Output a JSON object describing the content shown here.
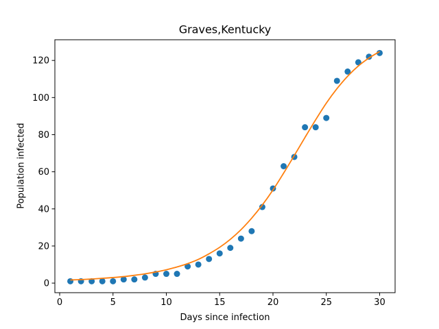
{
  "chart_data": {
    "type": "scatter",
    "title": "Graves,Kentucky",
    "xlabel": "Days since infection",
    "ylabel": "Population infected",
    "xlim": [
      -0.45,
      31.45
    ],
    "ylim": [
      -5.15,
      131.15
    ],
    "xticks": [
      0,
      5,
      10,
      15,
      20,
      25,
      30
    ],
    "yticks": [
      0,
      20,
      40,
      60,
      80,
      100,
      120
    ],
    "grid": false,
    "series": [
      {
        "kind": "scatter",
        "color": "#1f77b4",
        "x": [
          1,
          2,
          3,
          4,
          5,
          6,
          7,
          8,
          9,
          10,
          11,
          12,
          13,
          14,
          15,
          16,
          17,
          18,
          19,
          20,
          21,
          22,
          23,
          24,
          25,
          26,
          27,
          28,
          29,
          30
        ],
        "y": [
          1,
          1,
          1,
          1,
          1,
          2,
          2,
          3,
          5,
          5,
          5,
          9,
          10,
          13,
          16,
          19,
          24,
          28,
          41,
          51,
          63,
          68,
          84,
          84,
          89,
          109,
          114,
          119,
          122,
          124
        ]
      },
      {
        "kind": "line",
        "color": "#ff7f0e",
        "x": [
          1,
          2,
          3,
          4,
          5,
          6,
          7,
          8,
          9,
          10,
          11,
          12,
          13,
          14,
          15,
          16,
          17,
          18,
          19,
          20,
          21,
          22,
          23,
          24,
          25,
          26,
          27,
          28,
          29,
          30
        ],
        "y": [
          1.7,
          1.9,
          2.2,
          2.6,
          3.0,
          3.5,
          4.2,
          5.0,
          6.0,
          7.2,
          8.7,
          10.5,
          12.8,
          15.8,
          19.3,
          23.6,
          28.8,
          35.0,
          42.1,
          50.2,
          59.3,
          68.8,
          78.5,
          88.0,
          97.0,
          104.8,
          111.5,
          117.0,
          121.3,
          124.8
        ]
      }
    ]
  }
}
